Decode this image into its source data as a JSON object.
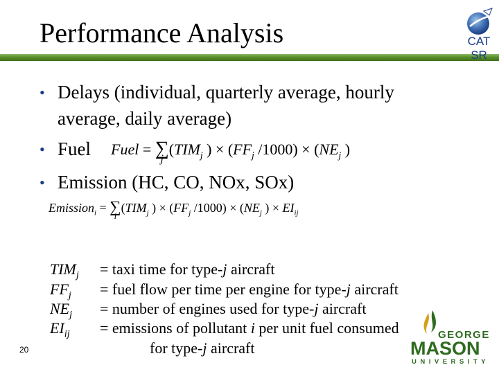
{
  "slide": {
    "title": "Performance Analysis",
    "logo_text_top": "CAT",
    "logo_text_bottom": "SR",
    "page_number": "20"
  },
  "bullets": [
    {
      "line1": "Delays  (individual, quarterly  average, hourly",
      "line2": "average, daily average)"
    },
    {
      "line1": "Fuel"
    },
    {
      "line1": "Emission (HC, CO, NOx, SOx)"
    }
  ],
  "equations": {
    "fuel": "Fuel = Σ_j (TIM_j) × (FF_j / 1000) × (NE_j)",
    "emission": "Emission_i = Σ_i (TIM_j) × (FF_j / 1000) × (NE_j) × EI_ij"
  },
  "definitions": [
    {
      "symbol": "TIM",
      "sub": "j",
      "pre": "= taxi time for type-",
      "ital": "j",
      "post": " aircraft"
    },
    {
      "symbol": "FF",
      "sub": "j",
      "pre": "= fuel flow per time per engine for type-",
      "ital": "j",
      "post": " aircraft"
    },
    {
      "symbol": "NE",
      "sub": "j",
      "pre": "= number of engines used for type-",
      "ital": "j",
      "post": " aircraft"
    },
    {
      "symbol": "EI",
      "sub": "ij",
      "pre": "= emissions of pollutant ",
      "ital": "i",
      "post": " per unit fuel consumed"
    }
  ],
  "definition_continuation": {
    "pre": "for type-",
    "ital": "j",
    "post": " aircraft"
  },
  "gmu_logo": {
    "line1": "GEORGE",
    "line2": "MASON",
    "line3": "UNIVERSITY"
  },
  "colors": {
    "bullet": "#1a3c8c",
    "bar_green": "#5a8f2a",
    "gmu_green": "#2e6b1f",
    "gmu_gold": "#d4a017"
  }
}
